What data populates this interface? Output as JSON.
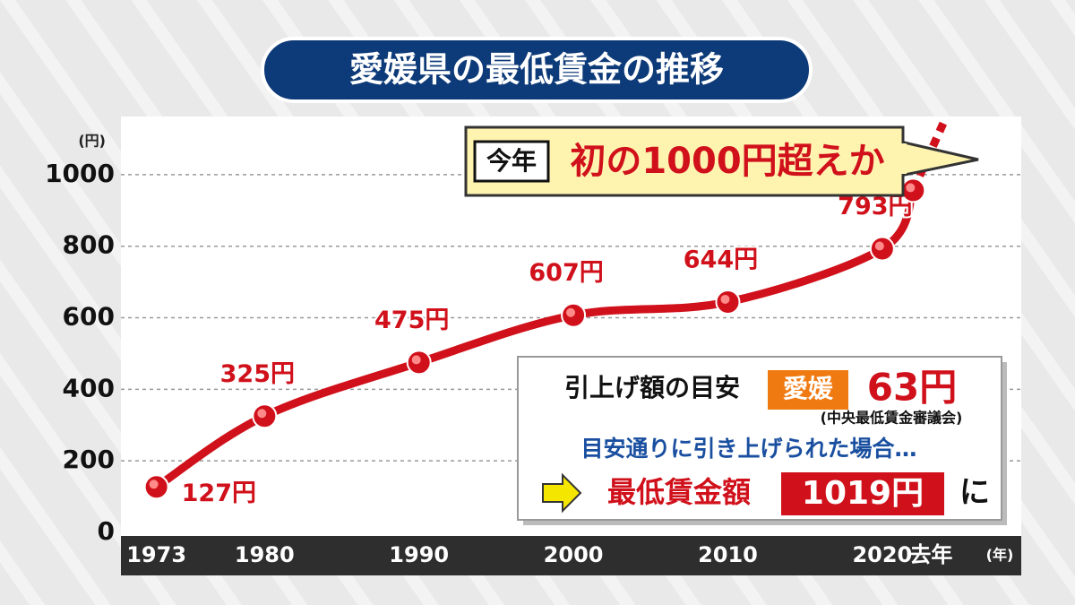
{
  "chart_data": {
    "type": "line",
    "title": "愛媛県の最低賃金の推移",
    "y_unit": "(円)",
    "x_unit": "(年)",
    "x": [
      1973,
      1980,
      1990,
      2000,
      2010,
      2020,
      2022
    ],
    "values": [
      127,
      325,
      475,
      607,
      644,
      793,
      956
    ],
    "value_labels": [
      "127円",
      "325円",
      "475円",
      "607円",
      "644円",
      "793円",
      null
    ],
    "color": "#d0101a",
    "xlim": [
      1970.7,
      2029
    ],
    "xticks": [
      1973,
      1980,
      1990,
      2000,
      2010,
      2020,
      {
        "value": 2022,
        "label": "去年"
      }
    ],
    "ylim": [
      0,
      1150
    ],
    "yticks": [
      0,
      200,
      400,
      600,
      800,
      1000
    ],
    "grid": true,
    "annotations": {
      "callout_tag": "今年",
      "callout": "初の1000円超えか",
      "guide_label": "引上げ額の目安",
      "guide_region": "愛媛",
      "guide_amount": "63円",
      "guide_source": "(中央最低賃金審議会)",
      "scenario": "目安通りに引き上げられた場合…",
      "result_label": "最低賃金額",
      "result_amount": "1019円",
      "result_suffix": "に"
    }
  }
}
